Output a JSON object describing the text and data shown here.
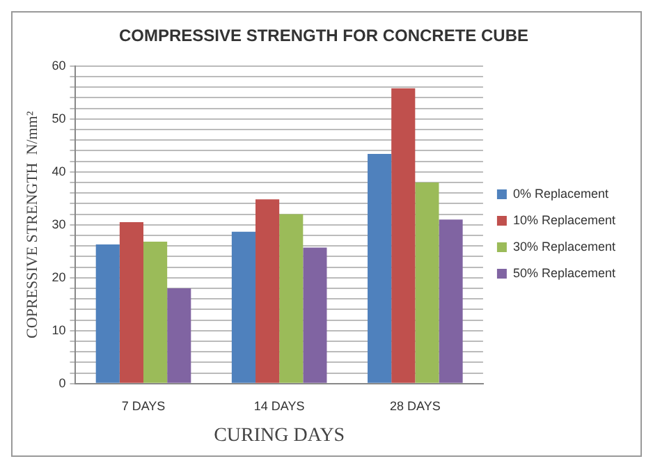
{
  "chart_data": {
    "type": "bar",
    "title": "COMPRESSIVE STRENGTH FOR CONCRETE CUBE",
    "xlabel": "CURING DAYS",
    "ylabel": "COPRESSIVE STRENGTH  N/mm²",
    "categories": [
      "7 DAYS",
      "14 DAYS",
      "28 DAYS"
    ],
    "series": [
      {
        "name": "0% Replacement",
        "color": "#4f81bd",
        "values": [
          26.3,
          28.7,
          43.4
        ]
      },
      {
        "name": "10% Replacement",
        "color": "#c0504d",
        "values": [
          30.5,
          34.8,
          55.8
        ]
      },
      {
        "name": "30% Replacement",
        "color": "#9bbb59",
        "values": [
          26.8,
          32,
          38
        ]
      },
      {
        "name": "50% Replacement",
        "color": "#8064a2",
        "values": [
          18,
          25.7,
          31
        ]
      }
    ],
    "ylim": [
      0,
      60
    ],
    "yticks": [
      0,
      {
        "value": 2,
        "label": null
      },
      {
        "value": 4,
        "label": null
      },
      {
        "value": 6,
        "label": null
      },
      {
        "value": 8,
        "label": null
      },
      10,
      {
        "value": 12,
        "label": null
      },
      {
        "value": 14,
        "label": null
      },
      {
        "value": 16,
        "label": null
      },
      {
        "value": 18,
        "label": null
      },
      20,
      {
        "value": 22,
        "label": null
      },
      {
        "value": 24,
        "label": null
      },
      {
        "value": 26,
        "label": null
      },
      {
        "value": 28,
        "label": null
      },
      30,
      {
        "value": 32,
        "label": null
      },
      {
        "value": 34,
        "label": null
      },
      {
        "value": 36,
        "label": null
      },
      {
        "value": 38,
        "label": null
      },
      40,
      {
        "value": 42,
        "label": null
      },
      {
        "value": 44,
        "label": null
      },
      {
        "value": 46,
        "label": null
      },
      {
        "value": 48,
        "label": null
      },
      50,
      {
        "value": 52,
        "label": null
      },
      {
        "value": 54,
        "label": null
      },
      {
        "value": 56,
        "label": null
      },
      {
        "value": 58,
        "label": null
      },
      60
    ],
    "grid": "y",
    "legend": "right"
  }
}
